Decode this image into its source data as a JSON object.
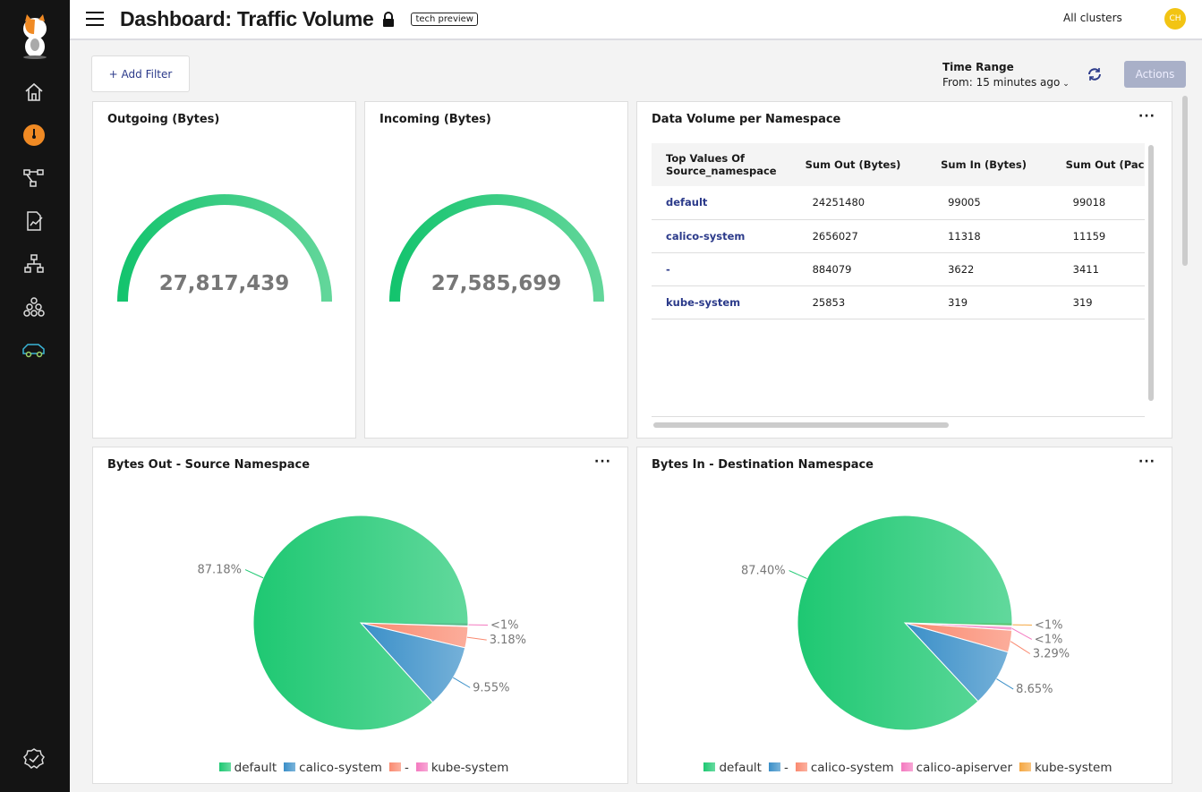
{
  "header": {
    "title": "Dashboard: Traffic Volume",
    "badge": "tech preview",
    "cluster": "All clusters",
    "avatar": "CH"
  },
  "toolbar": {
    "add_filter": "+ Add Filter",
    "time_range_label": "Time Range",
    "time_range_value": "From: 15 minutes ago",
    "actions": "Actions"
  },
  "gauges": [
    {
      "title": "Outgoing (Bytes)",
      "value": "27,817,439",
      "fill_fraction": 1.0
    },
    {
      "title": "Incoming (Bytes)",
      "value": "27,585,699",
      "fill_fraction": 1.0
    }
  ],
  "table_panel": {
    "title": "Data Volume per Namespace",
    "columns": [
      "Top Values Of Source_namespace",
      "Sum Out (Bytes)",
      "Sum In (Bytes)",
      "Sum Out (Packet"
    ],
    "rows": [
      [
        "default",
        "24251480",
        "99005",
        "99018"
      ],
      [
        "calico-system",
        "2656027",
        "11318",
        "11159"
      ],
      [
        "-",
        "884079",
        "3622",
        "3411"
      ],
      [
        "kube-system",
        "25853",
        "319",
        "319"
      ]
    ]
  },
  "chart_data": [
    {
      "type": "pie",
      "title": "Bytes Out - Source Namespace",
      "legend": "bottom",
      "slices": [
        {
          "name": "default",
          "value": 87.18,
          "label": "87.18%",
          "color": "#1ec872"
        },
        {
          "name": "calico-system",
          "value": 9.55,
          "label": "9.55%",
          "color": "#3a8fc8"
        },
        {
          "name": "-",
          "value": 3.18,
          "label": "3.18%",
          "color": "#fa8a70"
        },
        {
          "name": "kube-system",
          "value": 0.09,
          "label": "<1%",
          "color": "#f47ac0"
        }
      ]
    },
    {
      "type": "pie",
      "title": "Bytes In - Destination Namespace",
      "legend": "bottom",
      "slices": [
        {
          "name": "default",
          "value": 87.4,
          "label": "87.40%",
          "color": "#1ec872"
        },
        {
          "name": "-",
          "value": 8.65,
          "label": "8.65%",
          "color": "#3a8fc8"
        },
        {
          "name": "calico-system",
          "value": 3.29,
          "label": "3.29%",
          "color": "#fa8a70"
        },
        {
          "name": "calico-apiserver",
          "value": 0.5,
          "label": "<1%",
          "color": "#f47ac0"
        },
        {
          "name": "kube-system",
          "value": 0.16,
          "label": "<1%",
          "color": "#f5a742"
        }
      ]
    }
  ]
}
